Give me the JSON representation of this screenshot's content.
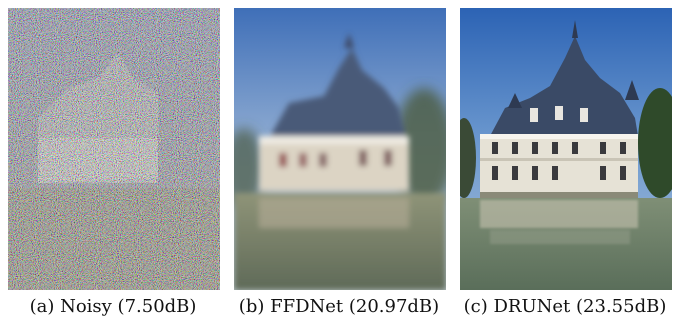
{
  "figure": {
    "panels": [
      {
        "id": "a",
        "caption": "(a)  Noisy (7.50dB)"
      },
      {
        "id": "b",
        "caption": "(b)  FFDNet (20.97dB)"
      },
      {
        "id": "c",
        "caption": "(c)  DRUNet (23.55dB)"
      }
    ]
  }
}
